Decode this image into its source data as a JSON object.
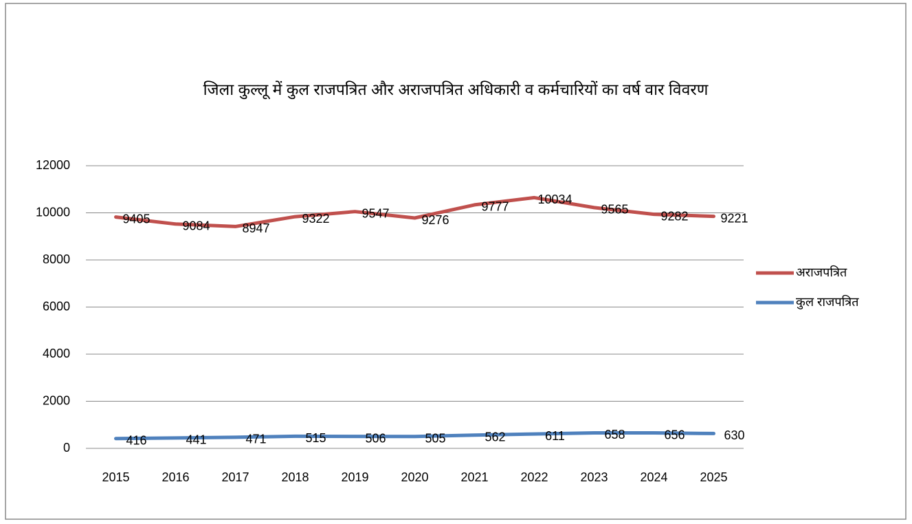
{
  "chart_data": {
    "type": "line",
    "stacked": true,
    "title": "जिला  कुल्लू में कुल राजपत्रित और अराजपत्रित अधिकारी व कर्मचारियों का वर्ष वार विवरण",
    "categories": [
      "2015",
      "2016",
      "2017",
      "2018",
      "2019",
      "2020",
      "2021",
      "2022",
      "2023",
      "2024",
      "2025"
    ],
    "series": [
      {
        "name": "कुल राजपत्रित",
        "color": "#4f81bd",
        "values": [
          416,
          441,
          471,
          515,
          506,
          505,
          562,
          611,
          658,
          656,
          630
        ]
      },
      {
        "name": "अराजपत्रित",
        "color": "#c0504d",
        "values": [
          9405,
          9084,
          8947,
          9322,
          9547,
          9276,
          9777,
          10034,
          9565,
          9282,
          9221
        ]
      }
    ],
    "ylim": [
      0,
      12000
    ],
    "yticks": [
      0,
      2000,
      4000,
      6000,
      8000,
      10000,
      12000
    ],
    "grid": true,
    "legend": "right"
  }
}
